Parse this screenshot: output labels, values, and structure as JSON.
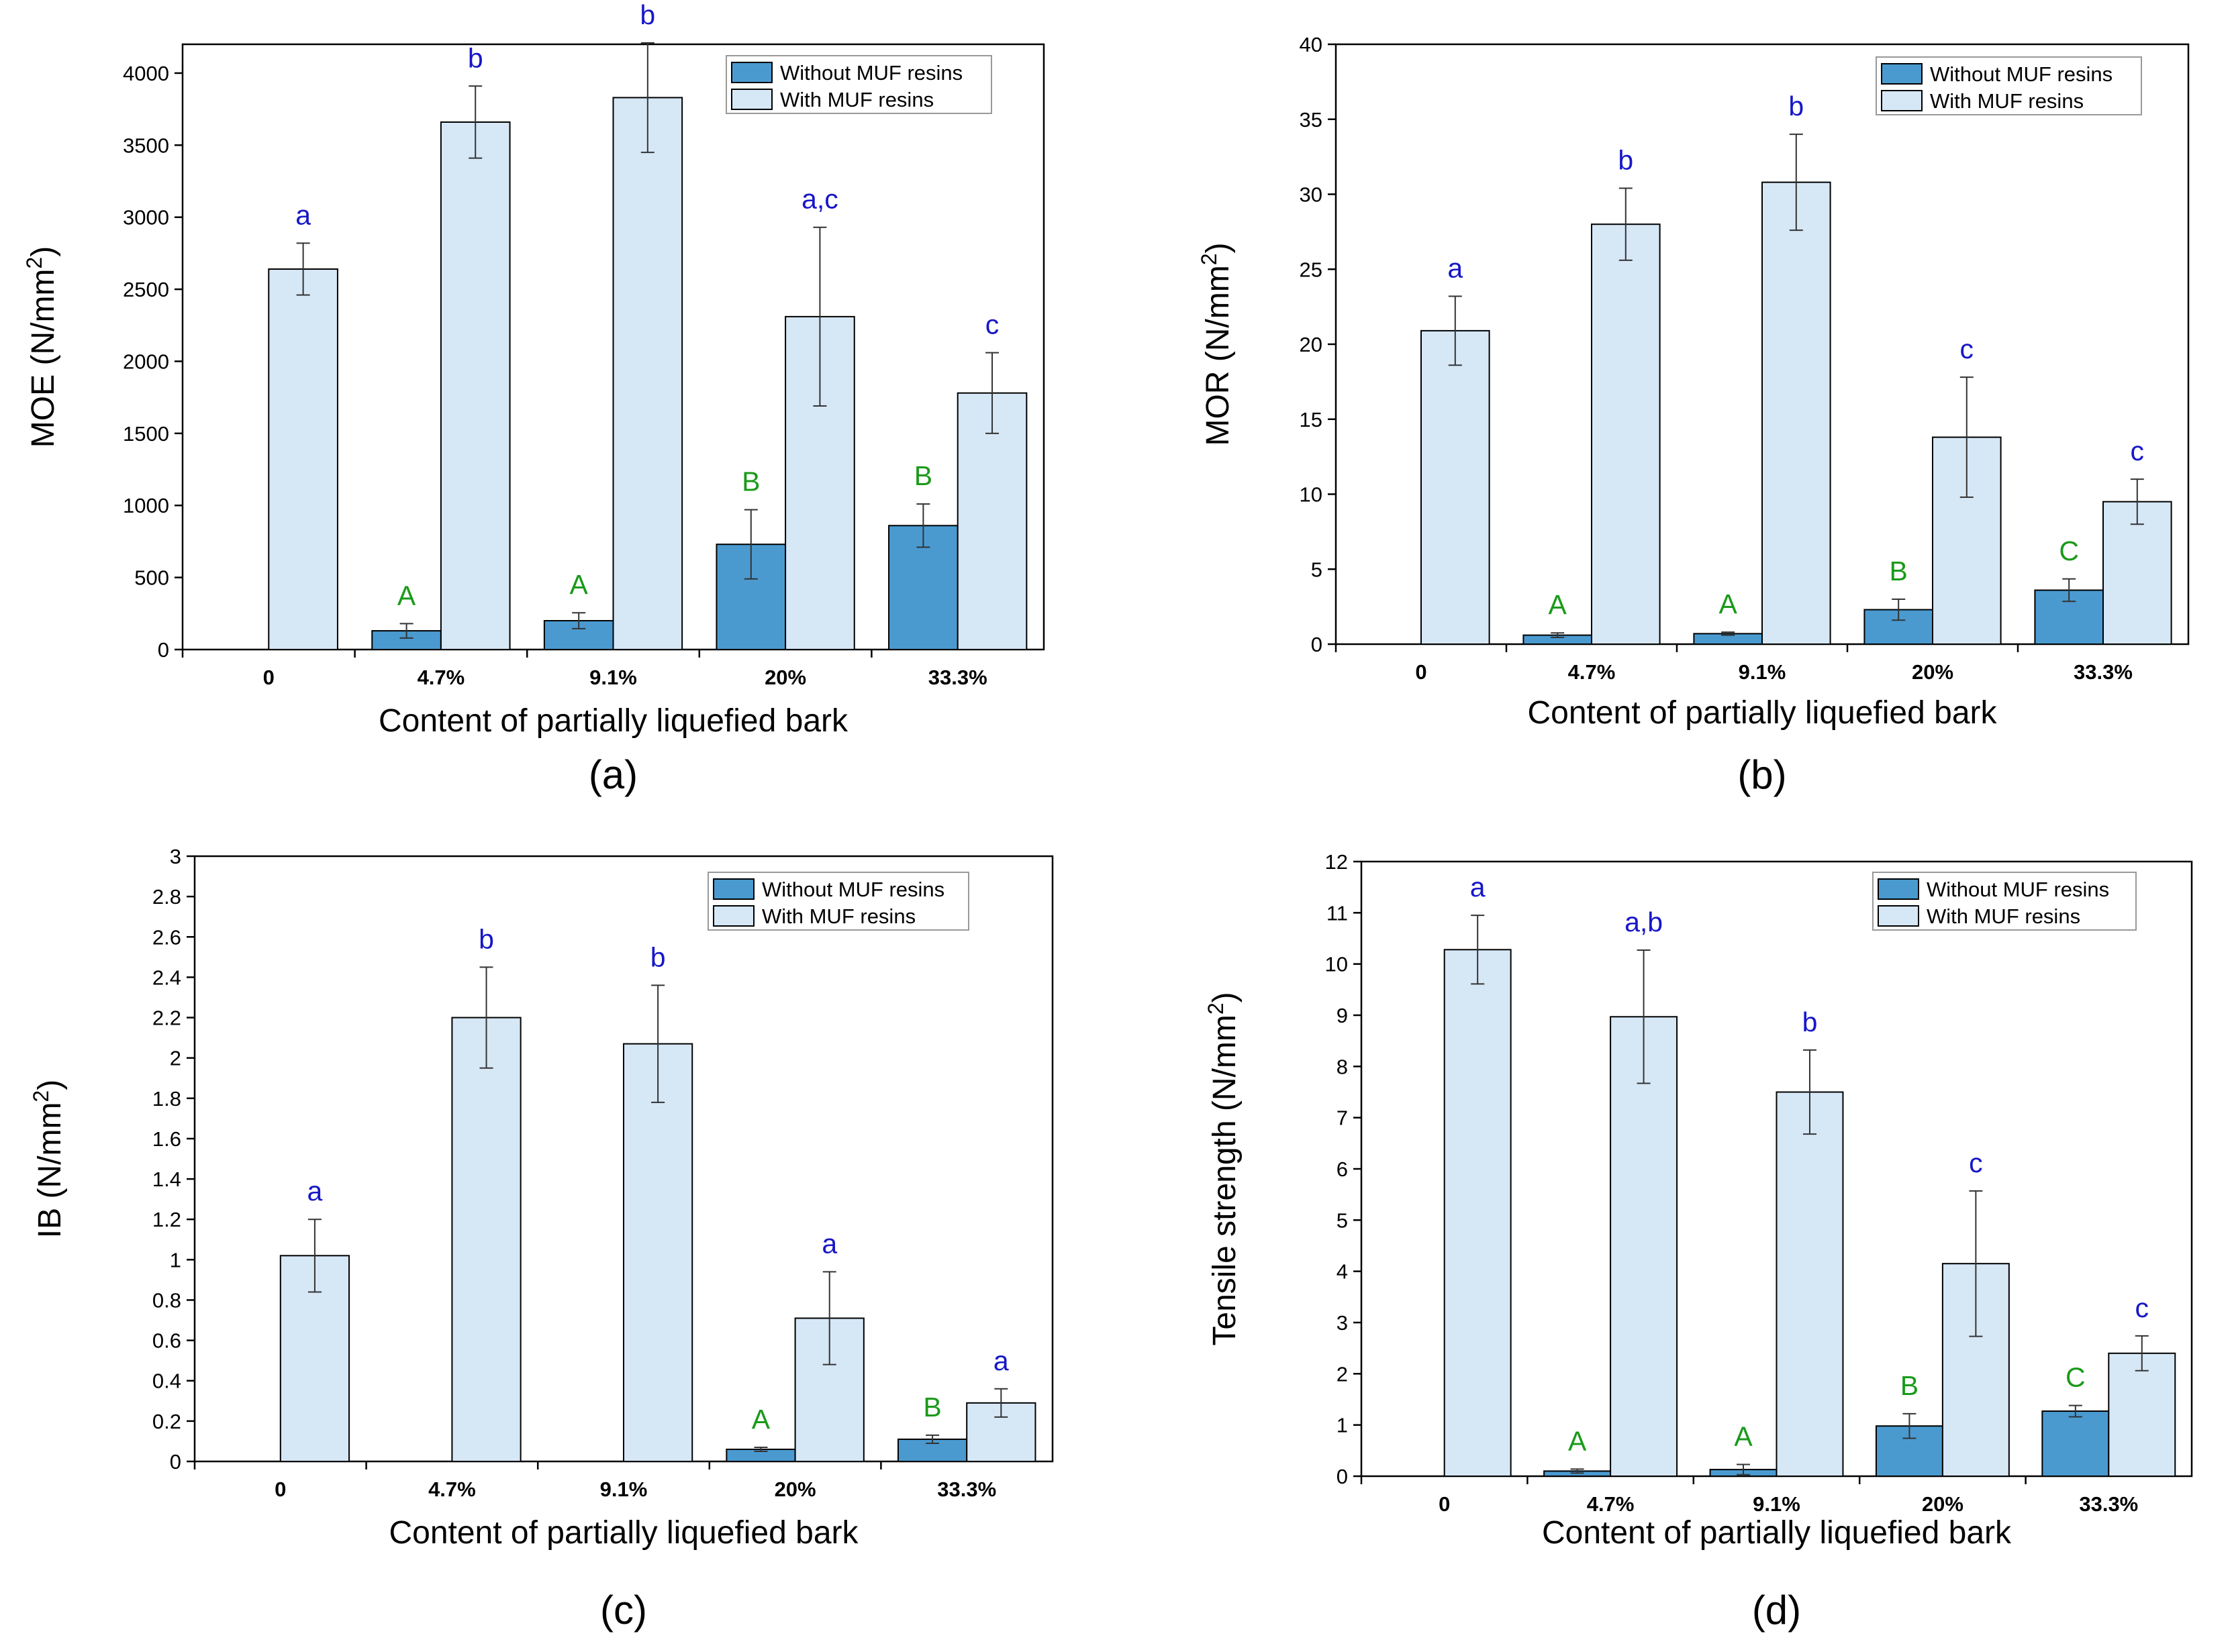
{
  "colors": {
    "without": "#4a9ad0",
    "with": "#d6e7f6",
    "upper_letters": "#1a9a1a",
    "lower_letters": "#1717c8",
    "outline": "#000000"
  },
  "chart_data": [
    {
      "panel": "(a)",
      "type": "bar",
      "title": "",
      "xlabel": "Content of partially liquefied bark",
      "ylabel": "MOE (N/mm",
      "ylabel_sup": "2",
      "ylabel_end": ")",
      "categories": [
        "0",
        "4.7%",
        "9.1%",
        "20%",
        "33.3%"
      ],
      "ylim": [
        0,
        4200
      ],
      "yticks": [
        "0",
        "500",
        "1000",
        "1500",
        "2000",
        "2500",
        "3000",
        "3500",
        "4000"
      ],
      "ytick_values": [
        0,
        500,
        1000,
        1500,
        2000,
        2500,
        3000,
        3500,
        4000
      ],
      "legend": [
        "Without MUF resins",
        "With MUF resins"
      ],
      "series": [
        {
          "name": "Without MUF resins",
          "values": [
            null,
            130,
            200,
            730,
            860
          ],
          "errors": [
            null,
            50,
            55,
            240,
            150
          ],
          "letters": [
            null,
            "A",
            "A",
            "B",
            "B"
          ]
        },
        {
          "name": "With MUF resins",
          "values": [
            2640,
            3660,
            3830,
            2310,
            1780
          ],
          "errors": [
            180,
            250,
            380,
            620,
            280
          ],
          "letters": [
            "a",
            "b",
            "b",
            "a,c",
            "c"
          ]
        }
      ]
    },
    {
      "panel": "(b)",
      "type": "bar",
      "title": "",
      "xlabel": "Content of partially liquefied bark",
      "ylabel": "MOR (N/mm",
      "ylabel_sup": "2",
      "ylabel_end": ")",
      "categories": [
        "0",
        "4.7%",
        "9.1%",
        "20%",
        "33.3%"
      ],
      "ylim": [
        0,
        40
      ],
      "yticks": [
        "0",
        "5",
        "10",
        "15",
        "20",
        "25",
        "30",
        "35",
        "40"
      ],
      "ytick_values": [
        0,
        5,
        10,
        15,
        20,
        25,
        30,
        35,
        40
      ],
      "legend": [
        "Without MUF resins",
        "With MUF resins"
      ],
      "series": [
        {
          "name": "Without MUF resins",
          "values": [
            null,
            0.6,
            0.7,
            2.3,
            3.6
          ],
          "errors": [
            null,
            0.15,
            0.1,
            0.7,
            0.75
          ],
          "letters": [
            null,
            "A",
            "A",
            "B",
            "C"
          ]
        },
        {
          "name": "With MUF resins",
          "values": [
            20.9,
            28.0,
            30.8,
            13.8,
            9.5
          ],
          "errors": [
            2.3,
            2.4,
            3.2,
            4.0,
            1.5
          ],
          "letters": [
            "a",
            "b",
            "b",
            "c",
            "c"
          ]
        }
      ]
    },
    {
      "panel": "(c)",
      "type": "bar",
      "title": "",
      "xlabel": "Content of partially liquefied bark",
      "ylabel": "IB (N/mm",
      "ylabel_sup": "2",
      "ylabel_end": ")",
      "categories": [
        "0",
        "4.7%",
        "9.1%",
        "20%",
        "33.3%"
      ],
      "ylim": [
        0,
        3
      ],
      "yticks": [
        "0",
        "0.2",
        "0.4",
        "0.6",
        "0.8",
        "1",
        "1.2",
        "1.4",
        "1.6",
        "1.8",
        "2",
        "2.2",
        "2.4",
        "2.6",
        "2.8",
        "3"
      ],
      "ytick_values": [
        0,
        0.2,
        0.4,
        0.6,
        0.8,
        1,
        1.2,
        1.4,
        1.6,
        1.8,
        2,
        2.2,
        2.4,
        2.6,
        2.8,
        3
      ],
      "legend": [
        "Without MUF resins",
        "With MUF resins"
      ],
      "series": [
        {
          "name": "Without MUF resins",
          "values": [
            null,
            null,
            null,
            0.06,
            0.11
          ],
          "errors": [
            null,
            null,
            null,
            0.01,
            0.02
          ],
          "letters": [
            null,
            null,
            null,
            "A",
            "B"
          ]
        },
        {
          "name": "With MUF resins",
          "values": [
            1.02,
            2.2,
            2.07,
            0.71,
            0.29
          ],
          "errors": [
            0.18,
            0.25,
            0.29,
            0.23,
            0.07
          ],
          "letters": [
            "a",
            "b",
            "b",
            "a",
            "a"
          ]
        }
      ]
    },
    {
      "panel": "(d)",
      "type": "bar",
      "title": "",
      "xlabel": "Content of partially liquefied bark",
      "ylabel": "Tensile strength (N/mm",
      "ylabel_sup": "2",
      "ylabel_end": ")",
      "categories": [
        "0",
        "4.7%",
        "9.1%",
        "20%",
        "33.3%"
      ],
      "ylim": [
        0,
        12
      ],
      "yticks": [
        "0",
        "1",
        "2",
        "3",
        "4",
        "5",
        "6",
        "7",
        "8",
        "9",
        "10",
        "11",
        "12"
      ],
      "ytick_values": [
        0,
        1,
        2,
        3,
        4,
        5,
        6,
        7,
        8,
        9,
        10,
        11,
        12
      ],
      "legend": [
        "Without MUF resins",
        "With MUF resins"
      ],
      "series": [
        {
          "name": "Without MUF resins",
          "values": [
            null,
            0.1,
            0.13,
            0.98,
            1.27
          ],
          "errors": [
            null,
            0.04,
            0.1,
            0.24,
            0.11
          ],
          "letters": [
            null,
            "A",
            "A",
            "B",
            "C"
          ]
        },
        {
          "name": "With MUF resins",
          "values": [
            10.28,
            8.97,
            7.5,
            4.15,
            2.4
          ],
          "errors": [
            0.67,
            1.3,
            0.82,
            1.42,
            0.34
          ],
          "letters": [
            "a",
            "a,b",
            "b",
            "c",
            "c"
          ]
        }
      ]
    }
  ]
}
